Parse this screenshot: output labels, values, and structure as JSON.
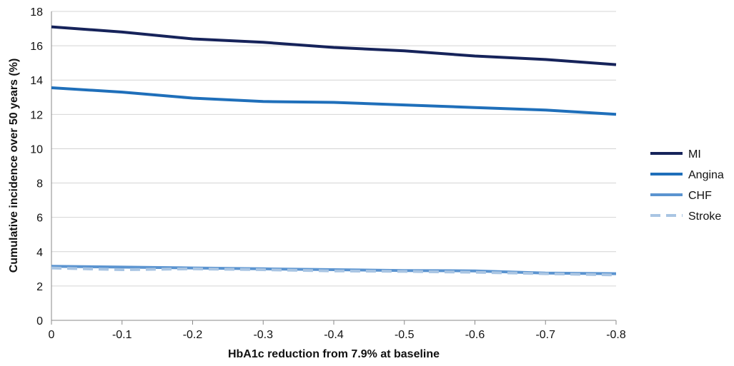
{
  "chart_data": {
    "type": "line",
    "title": "",
    "xlabel": "HbA1c reduction from 7.9% at baseline",
    "ylabel": "Cumulative incidence over 50 years (%)",
    "x": [
      0,
      -0.1,
      -0.2,
      -0.3,
      -0.4,
      -0.5,
      -0.6,
      -0.7,
      -0.8
    ],
    "x_tick_labels": [
      "0",
      "-0.1",
      "-0.2",
      "-0.3",
      "-0.4",
      "-0.5",
      "-0.6",
      "-0.7",
      "-0.8"
    ],
    "xlim": [
      0,
      -0.8
    ],
    "ylim": [
      0,
      18
    ],
    "y_ticks": [
      0,
      2,
      4,
      6,
      8,
      10,
      12,
      14,
      16,
      18
    ],
    "grid": "horizontal",
    "legend_position": "right",
    "series": [
      {
        "name": "MI",
        "color": "#16235a",
        "dash": "solid",
        "values": [
          17.1,
          16.8,
          16.4,
          16.2,
          15.9,
          15.7,
          15.4,
          15.2,
          14.9
        ]
      },
      {
        "name": "Angina",
        "color": "#1f6fba",
        "dash": "solid",
        "values": [
          13.55,
          13.3,
          12.95,
          12.75,
          12.7,
          12.55,
          12.4,
          12.25,
          12.0
        ]
      },
      {
        "name": "CHF",
        "color": "#5b94d0",
        "dash": "solid",
        "values": [
          3.15,
          3.1,
          3.05,
          3.0,
          2.95,
          2.9,
          2.88,
          2.75,
          2.72
        ]
      },
      {
        "name": "Stroke",
        "color": "#a9c5e3",
        "dash": "dashed",
        "values": [
          3.05,
          2.95,
          3.0,
          2.95,
          2.88,
          2.85,
          2.8,
          2.72,
          2.65
        ]
      }
    ]
  }
}
